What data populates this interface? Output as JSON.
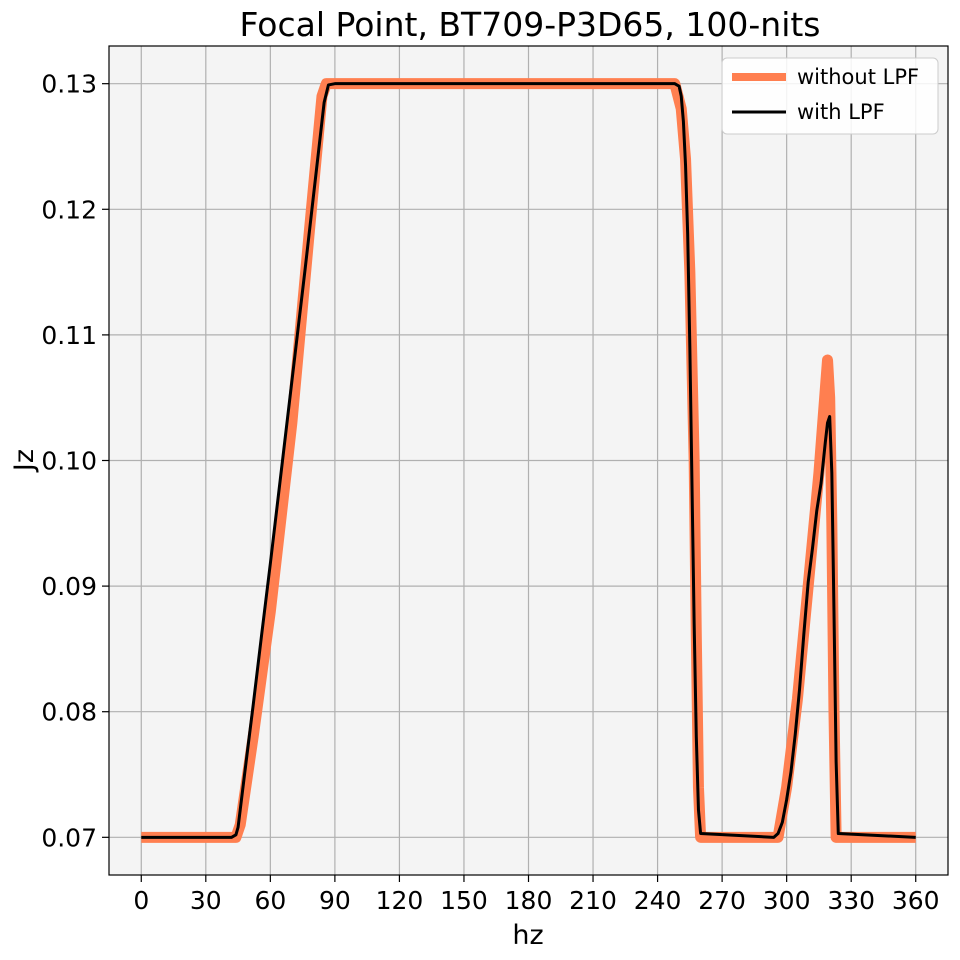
{
  "chart_data": {
    "type": "line",
    "title": "Focal Point,  BT709-P3D65,   100-nits",
    "xlabel": "hz",
    "ylabel": "Jz",
    "xlim": [
      -15,
      375
    ],
    "ylim": [
      0.067,
      0.133
    ],
    "xticks": [
      0,
      30,
      60,
      90,
      120,
      150,
      180,
      210,
      240,
      270,
      300,
      330,
      360
    ],
    "xtick_labels": [
      "0",
      "30",
      "60",
      "90",
      "120",
      "150",
      "180",
      "210",
      "240",
      "270",
      "300",
      "330",
      "360"
    ],
    "yticks": [
      0.07,
      0.08,
      0.09,
      0.1,
      0.11,
      0.12,
      0.13
    ],
    "ytick_labels": [
      "0.07",
      "0.08",
      "0.09",
      "0.10",
      "0.11",
      "0.12",
      "0.13"
    ],
    "grid": true,
    "legend_position": "top-right",
    "series": [
      {
        "name": "without LPF",
        "color": "#ff7f50",
        "style": "thick-jagged",
        "x": [
          0,
          44,
          46,
          52,
          60,
          70,
          78,
          84,
          86,
          200,
          248,
          251,
          253,
          255,
          257,
          258,
          259,
          260,
          296,
          300,
          305,
          310,
          315,
          319,
          320,
          321,
          322,
          323,
          360
        ],
        "y": [
          0.07,
          0.07,
          0.071,
          0.078,
          0.088,
          0.103,
          0.118,
          0.129,
          0.13,
          0.13,
          0.13,
          0.128,
          0.124,
          0.115,
          0.1,
          0.086,
          0.074,
          0.07,
          0.07,
          0.074,
          0.081,
          0.09,
          0.099,
          0.108,
          0.105,
          0.095,
          0.08,
          0.07,
          0.07
        ]
      },
      {
        "name": "with LPF",
        "color": "#000000",
        "style": "thin",
        "x": [
          0,
          42,
          44,
          45,
          46,
          48,
          52,
          56,
          60,
          64,
          68,
          72,
          76,
          80,
          83,
          85,
          87,
          90,
          200,
          248,
          250,
          251,
          252,
          253,
          254,
          255,
          256,
          257,
          258,
          259,
          260,
          294,
          296,
          298,
          300,
          302,
          304,
          306,
          308,
          310,
          312,
          314,
          316,
          318,
          319,
          320,
          321,
          322,
          323,
          324,
          360
        ],
        "y": [
          0.07,
          0.07,
          0.0702,
          0.0708,
          0.0722,
          0.075,
          0.0805,
          0.0862,
          0.0918,
          0.0976,
          0.1034,
          0.1092,
          0.115,
          0.121,
          0.1255,
          0.1285,
          0.1299,
          0.13,
          0.13,
          0.13,
          0.1298,
          0.129,
          0.127,
          0.1235,
          0.118,
          0.109,
          0.098,
          0.087,
          0.078,
          0.0722,
          0.0703,
          0.07,
          0.0703,
          0.0712,
          0.073,
          0.0752,
          0.0782,
          0.0818,
          0.0862,
          0.0903,
          0.093,
          0.096,
          0.0982,
          0.1015,
          0.103,
          0.1035,
          0.099,
          0.088,
          0.076,
          0.0703,
          0.07
        ]
      }
    ]
  }
}
